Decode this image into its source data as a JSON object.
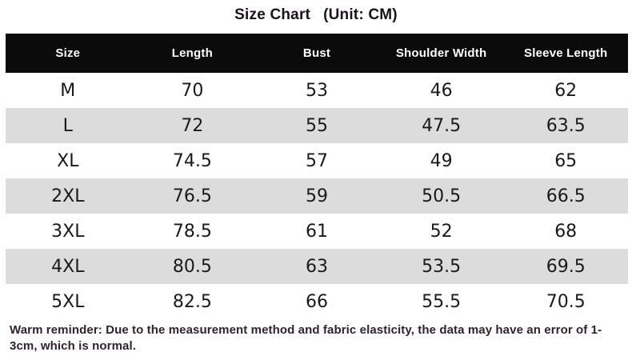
{
  "title": {
    "main": "Size Chart",
    "unit": "(Unit: CM)"
  },
  "table": {
    "headers": [
      "Size",
      "Length",
      "Bust",
      "Shoulder Width",
      "Sleeve Length"
    ],
    "rows": [
      [
        "M",
        "70",
        "53",
        "46",
        "62"
      ],
      [
        "L",
        "72",
        "55",
        "47.5",
        "63.5"
      ],
      [
        "XL",
        "74.5",
        "57",
        "49",
        "65"
      ],
      [
        "2XL",
        "76.5",
        "59",
        "50.5",
        "66.5"
      ],
      [
        "3XL",
        "78.5",
        "61",
        "52",
        "68"
      ],
      [
        "4XL",
        "80.5",
        "63",
        "53.5",
        "69.5"
      ],
      [
        "5XL",
        "82.5",
        "66",
        "55.5",
        "70.5"
      ]
    ]
  },
  "footer": {
    "note": "Warm reminder: Due to the measurement method and fabric elasticity, the data may have an error of 1-3cm, which is normal."
  },
  "colors": {
    "header_bg": "#0b0b0b",
    "header_text": "#ffffff",
    "row_alt_bg": "#dcdcdc",
    "body_text": "#1a1a1a",
    "note_text": "#32212e"
  },
  "chart_data": {
    "type": "table",
    "title": "Size Chart (Unit: CM)",
    "columns": [
      "Size",
      "Length",
      "Bust",
      "Shoulder Width",
      "Sleeve Length"
    ],
    "rows": [
      {
        "size": "M",
        "length": 70,
        "bust": 53,
        "shoulder_width": 46,
        "sleeve_length": 62
      },
      {
        "size": "L",
        "length": 72,
        "bust": 55,
        "shoulder_width": 47.5,
        "sleeve_length": 63.5
      },
      {
        "size": "XL",
        "length": 74.5,
        "bust": 57,
        "shoulder_width": 49,
        "sleeve_length": 65
      },
      {
        "size": "2XL",
        "length": 76.5,
        "bust": 59,
        "shoulder_width": 50.5,
        "sleeve_length": 66.5
      },
      {
        "size": "3XL",
        "length": 78.5,
        "bust": 61,
        "shoulder_width": 52,
        "sleeve_length": 68
      },
      {
        "size": "4XL",
        "length": 80.5,
        "bust": 63,
        "shoulder_width": 53.5,
        "sleeve_length": 69.5
      },
      {
        "size": "5XL",
        "length": 82.5,
        "bust": 66,
        "shoulder_width": 55.5,
        "sleeve_length": 70.5
      }
    ],
    "note": "Warm reminder: Due to the measurement method and fabric elasticity, the data may have an error of 1-3cm, which is normal."
  }
}
